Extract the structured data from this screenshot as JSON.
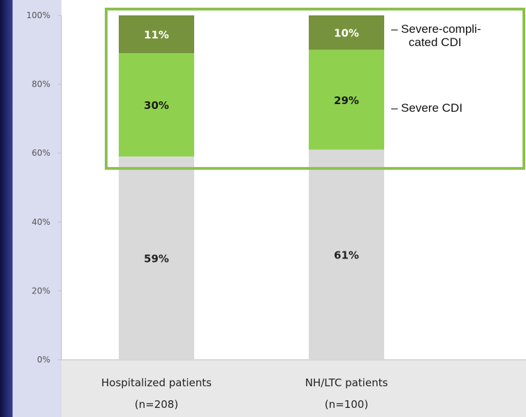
{
  "chart_data": {
    "type": "bar",
    "stacked": true,
    "categories": [
      [
        "Hospitalized patients",
        "(n=208)"
      ],
      [
        "NH/LTC patients",
        "(n=100)"
      ]
    ],
    "series": [
      {
        "values": [
          59,
          61
        ],
        "labels": [
          "59%",
          "61%"
        ],
        "color": "#d9d9d9",
        "label_color": "#222222"
      },
      {
        "name": "Severe CDI",
        "values": [
          30,
          29
        ],
        "labels": [
          "30%",
          "29%"
        ],
        "color": "#8fd14f",
        "label_color": "#1a1a1a"
      },
      {
        "name": "Severe-compli-cated CDI",
        "values": [
          11,
          10
        ],
        "labels": [
          "11%",
          "10%"
        ],
        "color": "#76923c",
        "label_color": "#ffffff"
      }
    ],
    "legend": [
      {
        "series": 2,
        "lines": [
          "– Severe-compli-",
          "cated CDI"
        ]
      },
      {
        "series": 1,
        "lines": [
          "– Severe CDI"
        ]
      }
    ],
    "ylim": [
      0,
      100
    ],
    "yticks": [
      {
        "value": 0,
        "label": "0%"
      },
      {
        "value": 20,
        "label": "20%"
      },
      {
        "value": 40,
        "label": "40%"
      },
      {
        "value": 60,
        "label": "60%"
      },
      {
        "value": 80,
        "label": "80%"
      },
      {
        "value": 100,
        "label": "100%"
      }
    ],
    "grid": false,
    "highlight_box": {
      "from": 59,
      "to": 100,
      "color": "#8cc04f"
    },
    "colors": {
      "background_left": "#2b2f7a",
      "axis": "#bfbfbf",
      "category_band": "#e8e8e8"
    }
  }
}
